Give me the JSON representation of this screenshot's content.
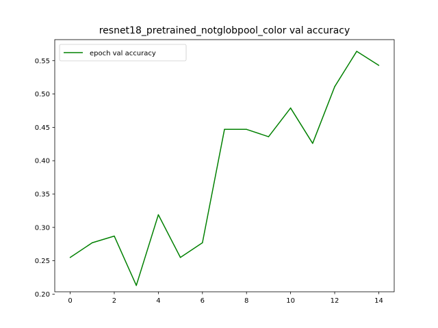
{
  "chart_data": {
    "type": "line",
    "title": "resnet18_pretrained_notglobpool_color val accuracy",
    "xlabel": "",
    "ylabel": "",
    "xlim": [
      -0.7,
      14.7
    ],
    "ylim": [
      0.2035,
      0.5815
    ],
    "x_ticks": [
      0,
      2,
      4,
      6,
      8,
      10,
      12,
      14
    ],
    "y_ticks": [
      0.2,
      0.25,
      0.3,
      0.35,
      0.4,
      0.45,
      0.5,
      0.55
    ],
    "grid": false,
    "legend_position": "top-left",
    "series": [
      {
        "name": "epoch val accuracy",
        "color": "#008000",
        "x": [
          0,
          1,
          2,
          3,
          4,
          5,
          6,
          7,
          8,
          9,
          10,
          11,
          12,
          13,
          14
        ],
        "y": [
          0.255,
          0.277,
          0.287,
          0.213,
          0.319,
          0.255,
          0.277,
          0.447,
          0.447,
          0.436,
          0.479,
          0.426,
          0.511,
          0.564,
          0.543
        ]
      }
    ]
  }
}
